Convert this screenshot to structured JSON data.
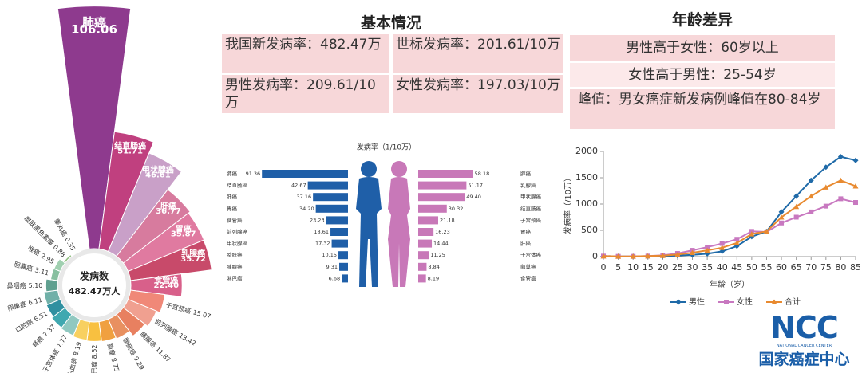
{
  "chart_data": [
    {
      "type": "rose",
      "center_label": "发病数",
      "center_value": "482.47万人",
      "categories": [
        "肺癌",
        "结直肠癌",
        "甲状腺癌",
        "肝癌",
        "胃癌",
        "乳腺癌",
        "食管癌",
        "子宫颈癌",
        "前列腺癌",
        "胰腺癌",
        "膀胱癌",
        "脑瘤",
        "淋巴瘤",
        "白血病",
        "子宫体癌",
        "肾癌",
        "口腔癌",
        "卵巢癌",
        "鼻咽癌",
        "胆囊癌",
        "喉癌",
        "皮肤黑色素瘤",
        "睾丸癌"
      ],
      "values": [
        106.06,
        51.71,
        46.61,
        36.77,
        35.87,
        35.72,
        22.4,
        15.07,
        13.42,
        11.87,
        9.29,
        8.75,
        8.52,
        8.19,
        7.77,
        7.37,
        6.51,
        6.11,
        5.1,
        3.11,
        2.95,
        0.88,
        0.35
      ],
      "value_labels": [
        "106.06",
        "51.71",
        "46.61",
        "36.77",
        "35.87",
        "35.72",
        "22.40",
        "15.07",
        "13.42",
        "11.87",
        "9.29",
        "8.75",
        "8.52",
        "8.19",
        "7.77",
        "7.37",
        "6.51",
        "6.11",
        "5.10",
        "3.11",
        "2.95",
        "0.88",
        "0.35"
      ],
      "colors": [
        "#8e3a8e",
        "#c0407f",
        "#c9a0c8",
        "#d77b9e",
        "#e07aa0",
        "#c84a6a",
        "#d8608a",
        "#f08878",
        "#f0a090",
        "#e88060",
        "#e89060",
        "#f0a040",
        "#f8c040",
        "#f8d060",
        "#90c8c0",
        "#40a8b0",
        "#3090a0",
        "#70b0a8",
        "#60a090",
        "#88c0a0",
        "#a0d0b0",
        "#90c080",
        "#a0c890"
      ]
    },
    {
      "type": "butterfly",
      "title": "发病率（1/10万）",
      "series": [
        {
          "color": "#1f5fa8",
          "categories": [
            "肺癌",
            "结直肠癌",
            "肝癌",
            "胃癌",
            "食管癌",
            "前列腺癌",
            "甲状腺癌",
            "膀胱癌",
            "胰腺癌",
            "淋巴瘤"
          ],
          "values": [
            91.36,
            42.67,
            37.16,
            34.2,
            23.23,
            18.61,
            17.32,
            10.15,
            9.31,
            6.68
          ],
          "value_labels": [
            "91.36",
            "42.67",
            "37.16",
            "34.20",
            "23.23",
            "18.61",
            "17.32",
            "10.15",
            "9.31",
            "6.68"
          ]
        },
        {
          "color": "#c878b8",
          "categories": [
            "肺癌",
            "乳腺癌",
            "甲状腺癌",
            "结直肠癌",
            "子宫颈癌",
            "胃癌",
            "肝癌",
            "子宫体癌",
            "卵巢癌",
            "食管癌"
          ],
          "values": [
            58.18,
            51.17,
            49.4,
            30.32,
            21.18,
            16.23,
            14.44,
            11.25,
            8.84,
            8.19
          ],
          "value_labels": [
            "58.18",
            "51.17",
            "49.40",
            "30.32",
            "21.18",
            "16.23",
            "14.44",
            "11.25",
            "8.84",
            "8.19"
          ]
        }
      ]
    },
    {
      "type": "line",
      "x_label": "年龄（岁）",
      "y_label": "发病率（/10万）",
      "x": [
        0,
        5,
        10,
        15,
        20,
        25,
        30,
        35,
        40,
        45,
        50,
        55,
        60,
        65,
        70,
        75,
        80,
        85
      ],
      "series": [
        {
          "name": "男性",
          "color": "#1f6aa8",
          "marker": "diamond",
          "values": [
            10,
            5,
            5,
            8,
            12,
            20,
            35,
            55,
            100,
            200,
            380,
            480,
            850,
            1150,
            1450,
            1700,
            1900,
            1830
          ]
        },
        {
          "name": "女性",
          "color": "#c878c0",
          "marker": "square",
          "values": [
            10,
            5,
            5,
            10,
            25,
            60,
            120,
            180,
            250,
            330,
            480,
            470,
            640,
            750,
            850,
            960,
            1100,
            1030
          ]
        },
        {
          "name": "合计",
          "color": "#e88a30",
          "marker": "triangle",
          "values": [
            10,
            5,
            5,
            10,
            18,
            40,
            75,
            120,
            170,
            260,
            430,
            480,
            750,
            950,
            1150,
            1320,
            1450,
            1340
          ]
        }
      ],
      "xlim": [
        0,
        85
      ],
      "xticks": [
        0,
        5,
        10,
        15,
        20,
        25,
        30,
        35,
        40,
        45,
        50,
        55,
        60,
        65,
        70,
        75,
        80,
        85
      ],
      "ylim": [
        0,
        2000
      ],
      "yticks": [
        0,
        500,
        1000,
        1500,
        2000
      ],
      "grid": false,
      "legend": "bottom"
    }
  ],
  "basic_info": {
    "title": "基本情况",
    "rows": [
      [
        "我国新发病率：482.47万",
        "世标发病率：201.61/10万"
      ],
      [
        "男性发病率：209.61/10万",
        "女性发病率：197.03/10万"
      ]
    ]
  },
  "age_diff": {
    "title": "年龄差异",
    "rows": [
      "男性高于女性：60岁以上",
      "女性高于男性：25-54岁",
      "峰值：男女癌症新发病例峰值在80-84岁"
    ]
  },
  "logo": {
    "mark": "NCC",
    "english": "NATIONAL CANCER CENTER",
    "chinese": "国家癌症中心"
  }
}
